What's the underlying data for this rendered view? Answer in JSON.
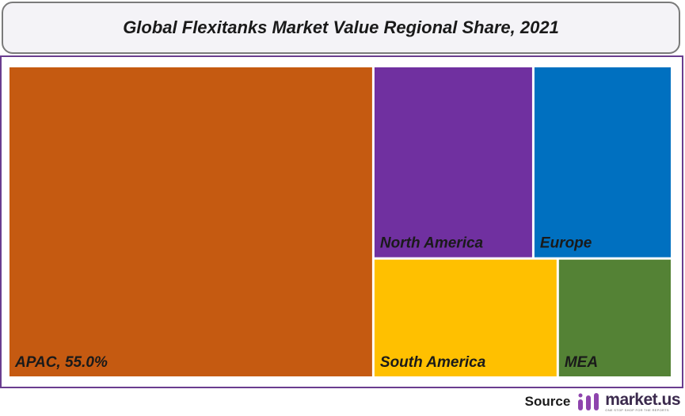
{
  "chart_data": {
    "type": "treemap",
    "title": "Global Flexitanks Market Value Regional Share, 2021",
    "items": [
      {
        "label": "APAC, 55.0%",
        "region": "APAC",
        "share_pct": 55.0,
        "color": "#C55A11"
      },
      {
        "label": "North America",
        "region": "North America",
        "share_pct": 15.0,
        "color": "#7030A0"
      },
      {
        "label": "Europe",
        "region": "Europe",
        "share_pct": 13.0,
        "color": "#0070C0"
      },
      {
        "label": "South America",
        "region": "South America",
        "share_pct": 10.5,
        "color": "#FFC000"
      },
      {
        "label": "MEA",
        "region": "MEA",
        "share_pct": 6.5,
        "color": "#548235"
      }
    ]
  },
  "footer": {
    "source_label": "Source",
    "logo_text": "market.us",
    "logo_tagline": "ONE STOP SHOP FOR THE REPORTS"
  },
  "colors": {
    "frame_border": "#6a3d8f",
    "title_border": "#7a7a7a",
    "logo_accent": "#8e44ad"
  }
}
